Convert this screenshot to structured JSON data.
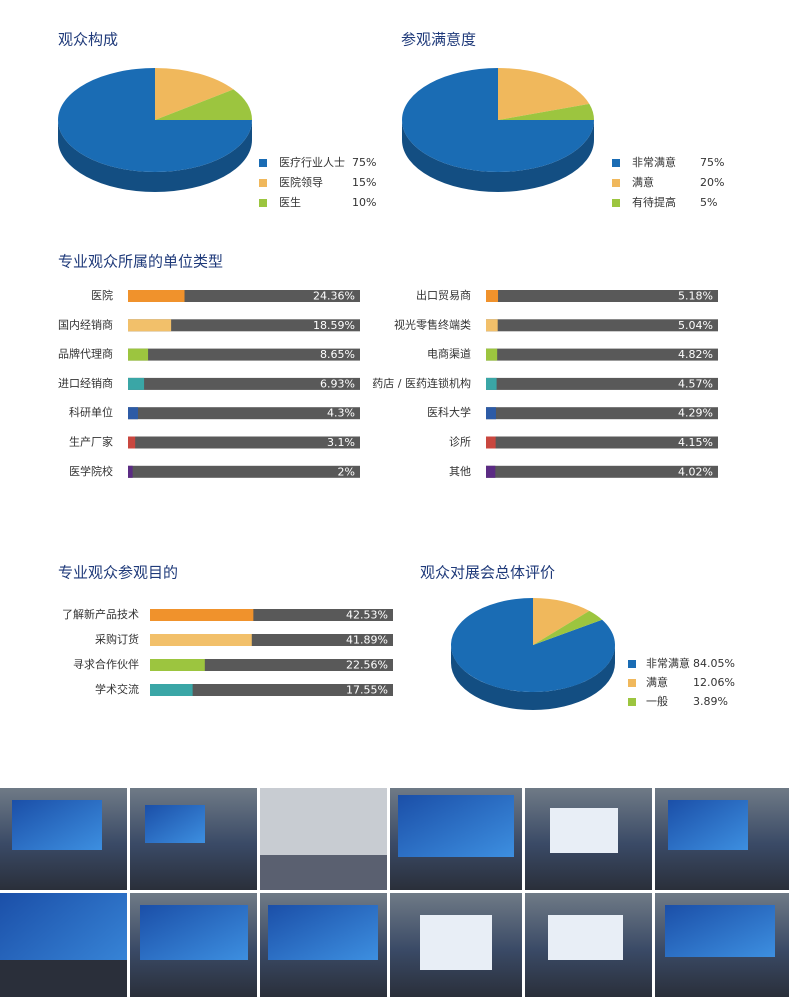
{
  "chart_data": [
    {
      "type": "pie",
      "title": "观众构成",
      "categories": [
        "医疗行业人士",
        "医院领导",
        "医生"
      ],
      "values": [
        75,
        15,
        10
      ],
      "value_labels": [
        "75%",
        "15%",
        "10%"
      ],
      "colors": [
        "#1a6cb4",
        "#f0b85c",
        "#9cc53f"
      ]
    },
    {
      "type": "pie",
      "title": "参观满意度",
      "categories": [
        "非常满意",
        "满意",
        "有待提高"
      ],
      "values": [
        75,
        20,
        5
      ],
      "value_labels": [
        "75%",
        "20%",
        "5%"
      ],
      "colors": [
        "#1a6cb4",
        "#f0b85c",
        "#9cc53f"
      ]
    },
    {
      "type": "progress",
      "title": "专业观众所属的单位类型",
      "categories": [
        "医院",
        "国内经销商",
        "品牌代理商",
        "进口经销商",
        "科研单位",
        "生产厂家",
        "医学院校",
        "出口贸易商",
        "视光零售终端类",
        "电商渠道",
        "药店 / 医药连锁机构",
        "医科大学",
        "诊所",
        "其他"
      ],
      "values": [
        24.36,
        18.59,
        8.65,
        6.93,
        4.3,
        3.1,
        2,
        5.18,
        5.04,
        4.82,
        4.57,
        4.29,
        4.15,
        4.02
      ],
      "value_labels": [
        "24.36%",
        "18.59%",
        "8.65%",
        "6.93%",
        "4.3%",
        "3.1%",
        "2%",
        "5.18%",
        "5.04%",
        "4.82%",
        "4.57%",
        "4.29%",
        "4.15%",
        "4.02%"
      ],
      "colors": [
        "#f0922c",
        "#f2c06a",
        "#9cc53f",
        "#3aa6a6",
        "#2d5ba6",
        "#c9473f",
        "#5b2b84",
        "#f0922c",
        "#f2c06a",
        "#9cc53f",
        "#3aa6a6",
        "#2d5ba6",
        "#c9473f",
        "#5b2b84"
      ],
      "track_color": "#595959",
      "xlim": [
        0,
        100
      ]
    },
    {
      "type": "progress",
      "title": "专业观众参观目的",
      "categories": [
        "了解新产品技术",
        "采购订货",
        "寻求合作伙伴",
        "学术交流"
      ],
      "values": [
        42.53,
        41.89,
        22.56,
        17.55
      ],
      "value_labels": [
        "42.53%",
        "41.89%",
        "22.56%",
        "17.55%"
      ],
      "colors": [
        "#f0922c",
        "#f2c06a",
        "#9cc53f",
        "#3aa6a6"
      ],
      "track_color": "#595959",
      "xlim": [
        0,
        100
      ]
    },
    {
      "type": "pie",
      "title": "观众对展会总体评价",
      "categories": [
        "非常满意",
        "满意",
        "一般"
      ],
      "values": [
        84.05,
        12.06,
        3.89
      ],
      "value_labels": [
        "84.05%",
        "12.06%",
        "3.89%"
      ],
      "colors": [
        "#1a6cb4",
        "#f0b85c",
        "#9cc53f"
      ]
    }
  ]
}
